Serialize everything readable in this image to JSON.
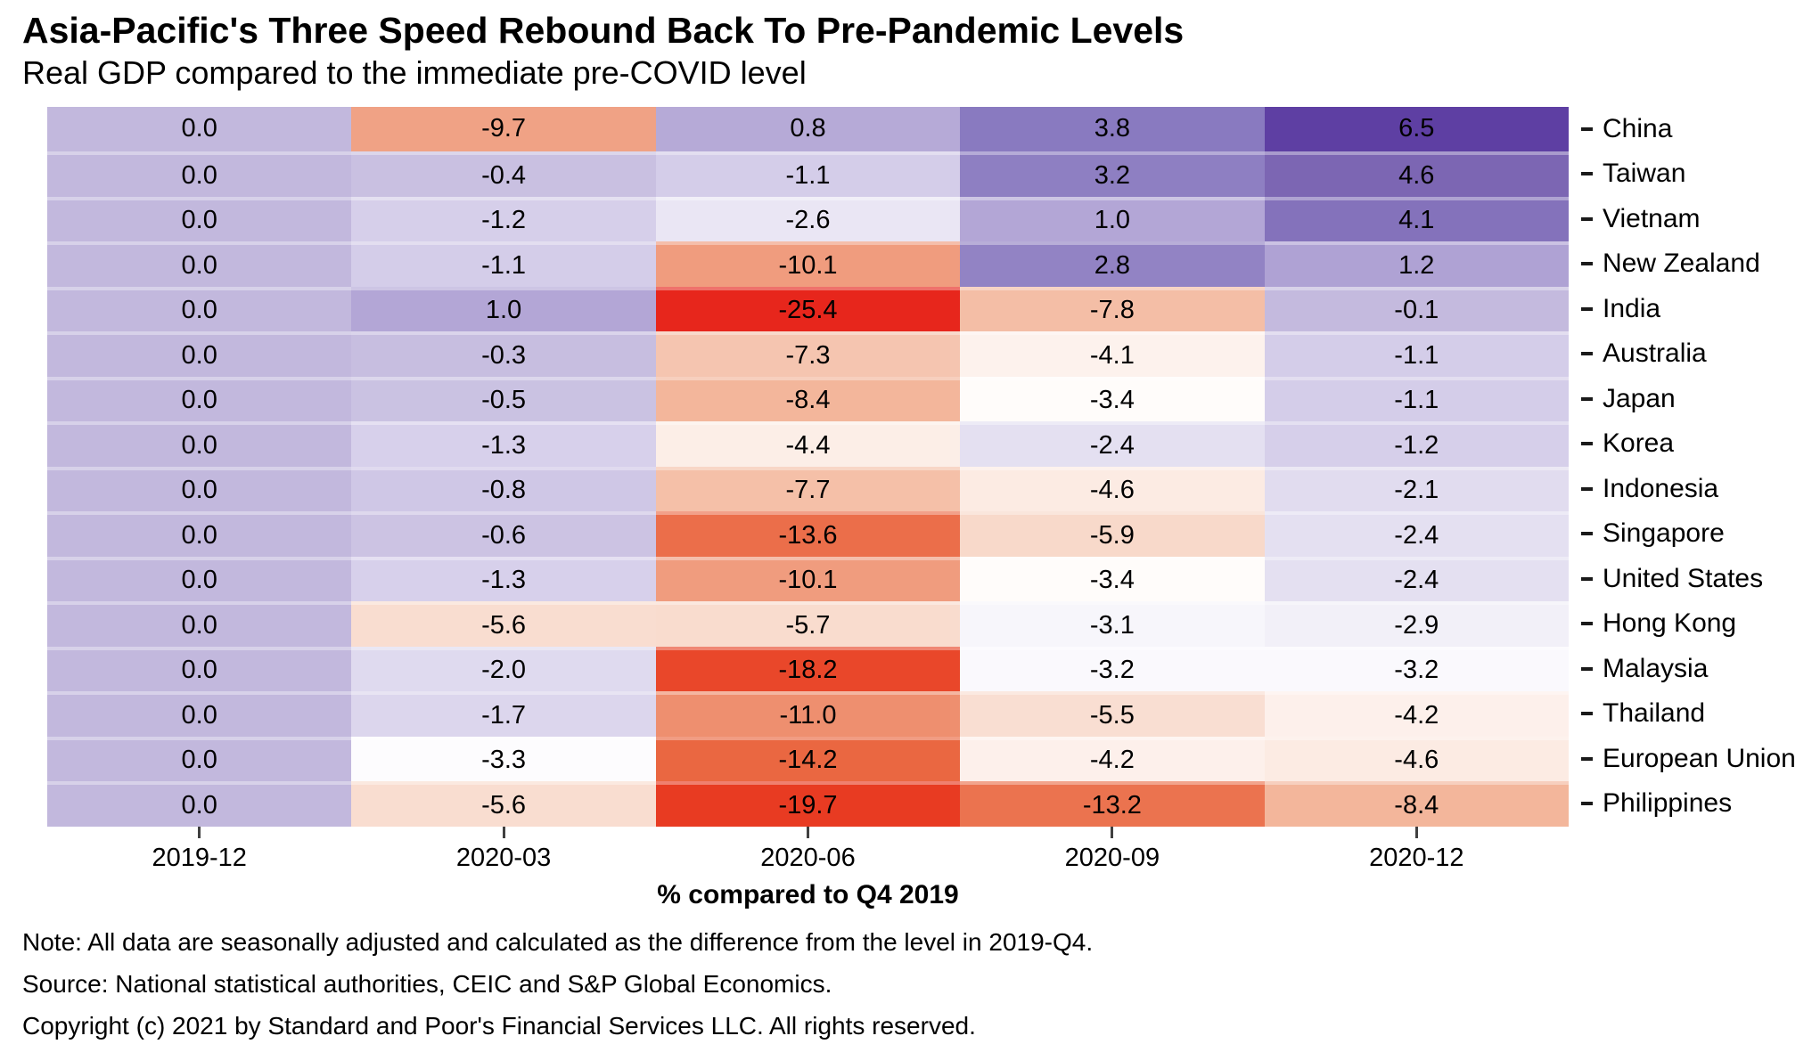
{
  "header": {
    "title": "Asia-Pacific's Three Speed Rebound Back To Pre-Pandemic Levels",
    "subtitle": "Real GDP compared to the immediate pre-COVID level"
  },
  "chart_data": {
    "type": "heatmap",
    "x_categories": [
      "2019-12",
      "2020-03",
      "2020-06",
      "2020-09",
      "2020-12"
    ],
    "rows": [
      {
        "name": "China",
        "values": [
          0.0,
          -9.7,
          0.8,
          3.8,
          6.5
        ]
      },
      {
        "name": "Taiwan",
        "values": [
          0.0,
          -0.4,
          -1.1,
          3.2,
          4.6
        ]
      },
      {
        "name": "Vietnam",
        "values": [
          0.0,
          -1.2,
          -2.6,
          1.0,
          4.1
        ]
      },
      {
        "name": "New Zealand",
        "values": [
          0.0,
          -1.1,
          -10.1,
          2.8,
          1.2
        ]
      },
      {
        "name": "India",
        "values": [
          0.0,
          1.0,
          -25.4,
          -7.8,
          -0.1
        ]
      },
      {
        "name": "Australia",
        "values": [
          0.0,
          -0.3,
          -7.3,
          -4.1,
          -1.1
        ]
      },
      {
        "name": "Japan",
        "values": [
          0.0,
          -0.5,
          -8.4,
          -3.4,
          -1.1
        ]
      },
      {
        "name": "Korea",
        "values": [
          0.0,
          -1.3,
          -4.4,
          -2.4,
          -1.2
        ]
      },
      {
        "name": "Indonesia",
        "values": [
          0.0,
          -0.8,
          -7.7,
          -4.6,
          -2.1
        ]
      },
      {
        "name": "Singapore",
        "values": [
          0.0,
          -0.6,
          -13.6,
          -5.9,
          -2.4
        ]
      },
      {
        "name": "United States",
        "values": [
          0.0,
          -1.3,
          -10.1,
          -3.4,
          -2.4
        ]
      },
      {
        "name": "Hong Kong",
        "values": [
          0.0,
          -5.6,
          -5.7,
          -3.1,
          -2.9
        ]
      },
      {
        "name": "Malaysia",
        "values": [
          0.0,
          -2.0,
          -18.2,
          -3.2,
          -3.2
        ]
      },
      {
        "name": "Thailand",
        "values": [
          0.0,
          -1.7,
          -11.0,
          -5.5,
          -4.2
        ]
      },
      {
        "name": "European Union",
        "values": [
          0.0,
          -3.3,
          -14.2,
          -4.2,
          -4.6
        ]
      },
      {
        "name": "Philippines",
        "values": [
          0.0,
          -5.6,
          -19.7,
          -13.2,
          -8.4
        ]
      }
    ],
    "xlabel": "% compared to Q4 2019",
    "value_decimals": 1,
    "grid": "off",
    "palette": {
      "midpoint": -3.3,
      "max": 6.5,
      "min": -25.4,
      "positive_stops": [
        {
          "t": 0.0,
          "color": "#fdfcfe"
        },
        {
          "t": 0.092,
          "color": "#e4e0f1"
        },
        {
          "t": 0.214,
          "color": "#d6cfea"
        },
        {
          "t": 0.337,
          "color": "#c2b8dd"
        },
        {
          "t": 0.439,
          "color": "#b3a6d6"
        },
        {
          "t": 0.622,
          "color": "#9283c4"
        },
        {
          "t": 0.724,
          "color": "#897ac0"
        },
        {
          "t": 0.806,
          "color": "#7c66b3"
        },
        {
          "t": 1.0,
          "color": "#5e3fa3"
        }
      ],
      "negative_stops": [
        {
          "t": 0.0,
          "color": "#fffdfc"
        },
        {
          "t": 0.104,
          "color": "#f9ddd0"
        },
        {
          "t": 0.231,
          "color": "#f3b69b"
        },
        {
          "t": 0.348,
          "color": "#ee8f6f"
        },
        {
          "t": 0.493,
          "color": "#ea6741"
        },
        {
          "t": 0.742,
          "color": "#e83b22"
        },
        {
          "t": 1.0,
          "color": "#e7261c"
        }
      ]
    }
  },
  "footer": {
    "note": "Note: All data are seasonally adjusted and calculated as the difference from the level in 2019-Q4.",
    "source": "Source: National statistical authorities, CEIC and S&P Global Economics.",
    "copyright": "Copyright (c) 2021 by Standard and Poor's Financial Services LLC. All rights reserved."
  }
}
